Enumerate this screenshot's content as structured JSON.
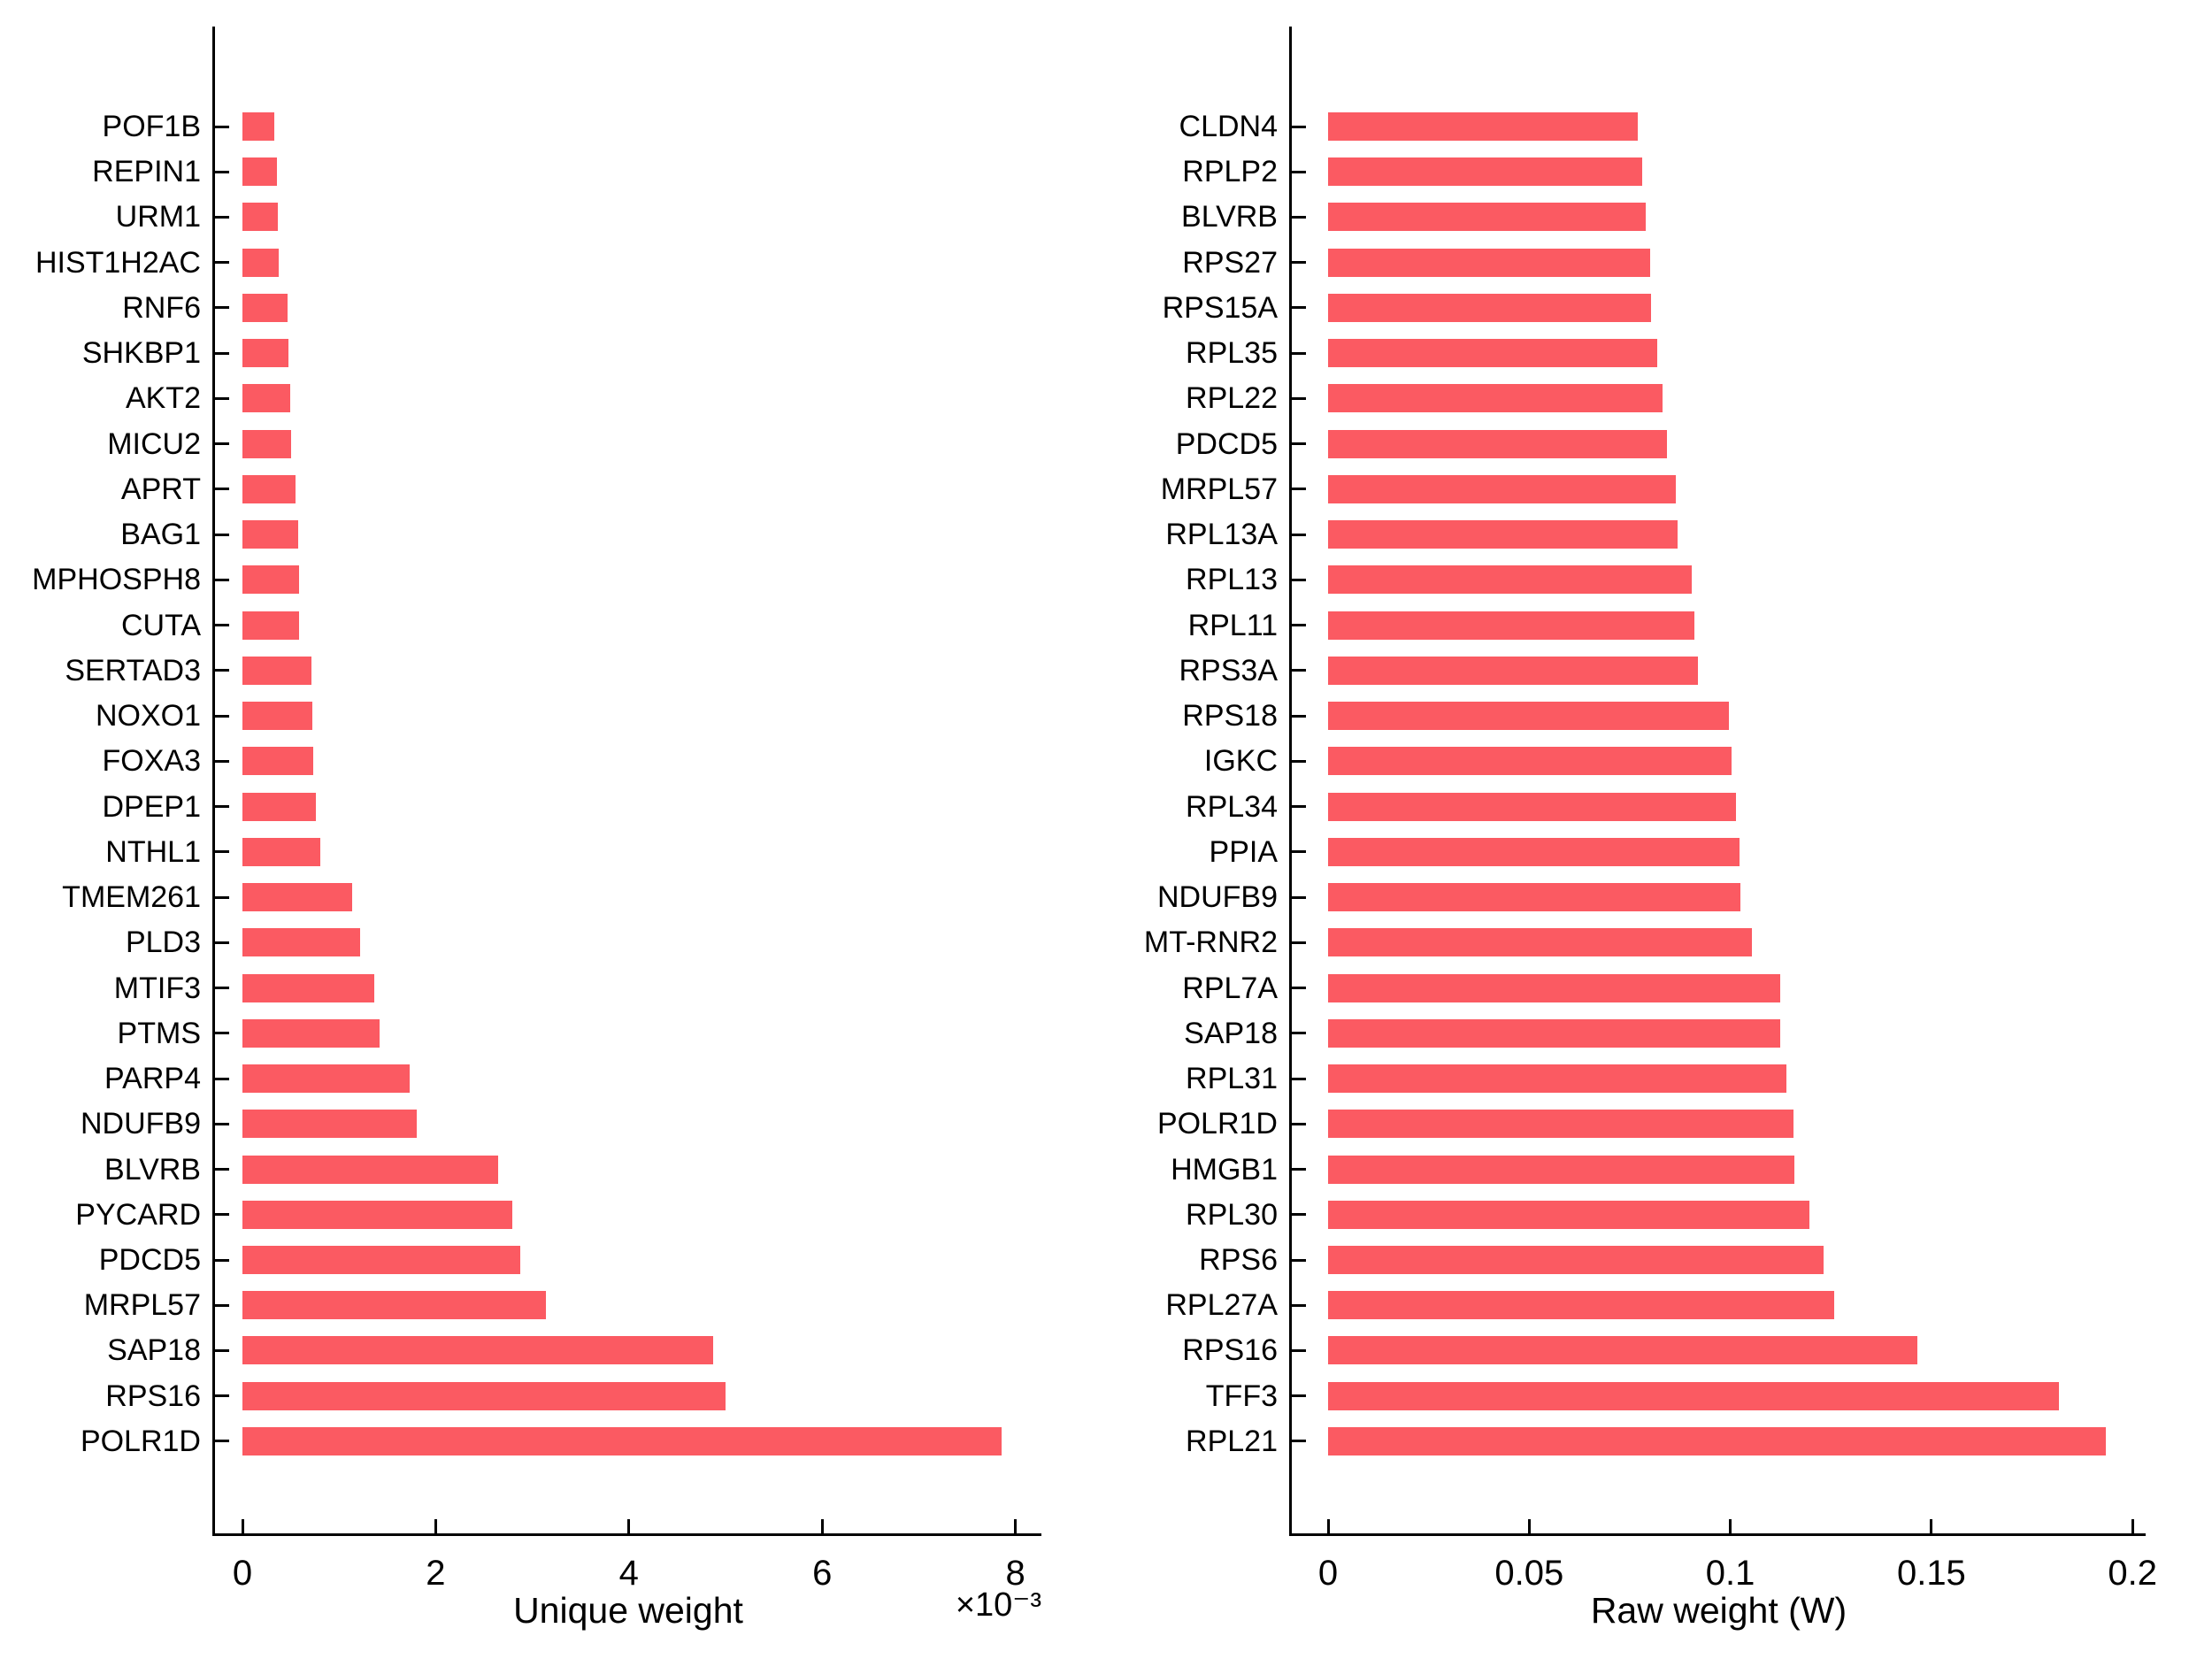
{
  "figure": {
    "background_color": "#ffffff",
    "bar_color": "#fb5a62",
    "axis_color": "#000000",
    "text_color": "#000000"
  },
  "chart_data": [
    {
      "type": "bar",
      "orientation": "horizontal",
      "title": "",
      "xlabel": "Unique weight",
      "ylabel": "",
      "x_multiplier": "×10⁻³",
      "value_units": "1e-3",
      "grid": false,
      "legend": null,
      "xlim": [
        -0.0003,
        0.00827
      ],
      "xticks": [
        0,
        2,
        4,
        6,
        8
      ],
      "xtick_labels": [
        "0",
        "2",
        "4",
        "6",
        "8"
      ],
      "categories": [
        "POF1B",
        "REPIN1",
        "URM1",
        "HIST1H2AC",
        "RNF6",
        "SHKBP1",
        "AKT2",
        "MICU2",
        "APRT",
        "BAG1",
        "MPHOSPH8",
        "CUTA",
        "SERTAD3",
        "NOXO1",
        "FOXA3",
        "DPEP1",
        "NTHL1",
        "TMEM261",
        "PLD3",
        "MTIF3",
        "PTMS",
        "PARP4",
        "NDUFB9",
        "BLVRB",
        "PYCARD",
        "PDCD5",
        "MRPL57",
        "SAP18",
        "RPS16",
        "POLR1D"
      ],
      "values": [
        0.33,
        0.36,
        0.37,
        0.38,
        0.47,
        0.48,
        0.49,
        0.5,
        0.55,
        0.58,
        0.59,
        0.59,
        0.71,
        0.72,
        0.73,
        0.76,
        0.81,
        1.14,
        1.22,
        1.36,
        1.42,
        1.73,
        1.8,
        2.65,
        2.79,
        2.88,
        3.14,
        4.87,
        5.0,
        7.86
      ]
    },
    {
      "type": "bar",
      "orientation": "horizontal",
      "title": "",
      "xlabel": "Raw weight (W)",
      "ylabel": "",
      "x_multiplier": "",
      "value_units": "1",
      "grid": false,
      "legend": null,
      "xlim": [
        -0.001,
        0.2026
      ],
      "xticks": [
        0,
        0.05,
        0.1,
        0.15,
        0.2
      ],
      "xtick_labels": [
        "0",
        "0.05",
        "0.1",
        "0.15",
        "0.2"
      ],
      "categories": [
        "CLDN4",
        "RPLP2",
        "BLVRB",
        "RPS27",
        "RPS15A",
        "RPL35",
        "RPL22",
        "PDCD5",
        "MRPL57",
        "RPL13A",
        "RPL13",
        "RPL11",
        "RPS3A",
        "RPS18",
        "IGKC",
        "RPL34",
        "PPIA",
        "NDUFB9",
        "MT-RNR2",
        "RPL7A",
        "SAP18",
        "RPL31",
        "POLR1D",
        "HMGB1",
        "RPL30",
        "RPS6",
        "RPL27A",
        "RPS16",
        "TFF3",
        "RPL21"
      ],
      "values": [
        0.0771,
        0.078,
        0.0789,
        0.08,
        0.0804,
        0.0818,
        0.0831,
        0.0842,
        0.0864,
        0.0868,
        0.0905,
        0.091,
        0.0919,
        0.0996,
        0.1002,
        0.1015,
        0.1022,
        0.1026,
        0.1053,
        0.1123,
        0.1125,
        0.1139,
        0.1158,
        0.116,
        0.1196,
        0.1231,
        0.1259,
        0.1464,
        0.1818,
        0.1934
      ]
    }
  ]
}
